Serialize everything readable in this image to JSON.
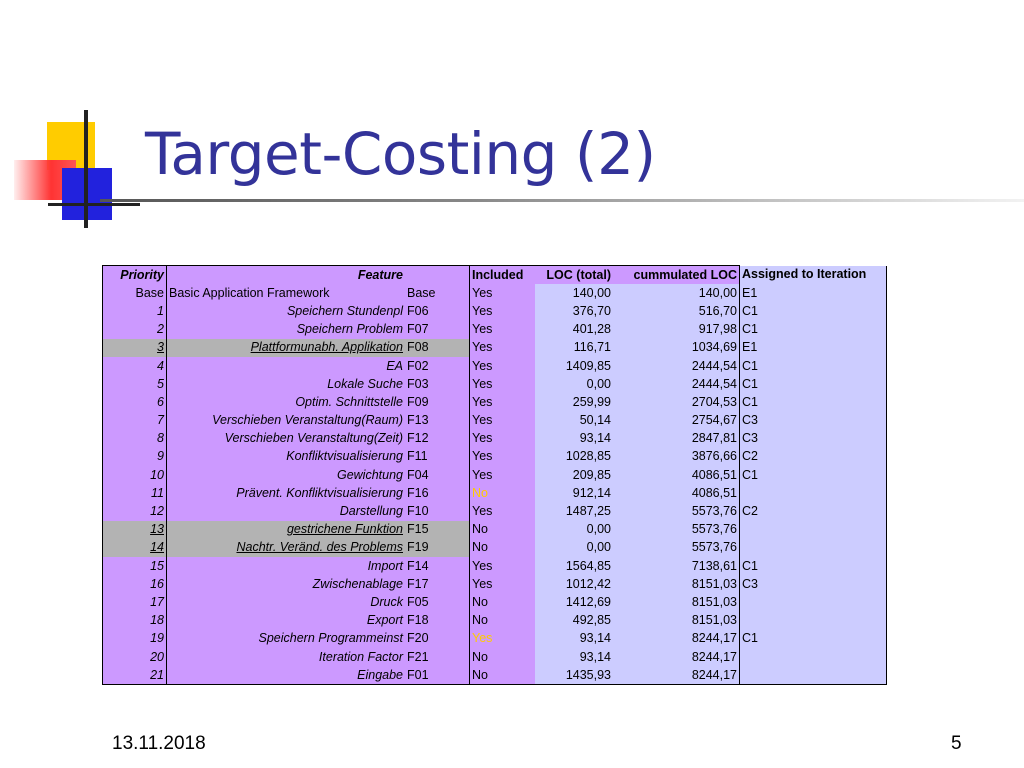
{
  "slide": {
    "title": "Target-Costing (2)",
    "footer_date": "13.11.2018",
    "page_number": "5"
  },
  "table": {
    "headers": [
      "Priority",
      "Feature",
      "",
      "Included",
      "LOC (total)",
      "cummulated LOC",
      "Assigned to Iteration"
    ],
    "rows": [
      {
        "priority": "Base",
        "feature": "Basic Application Framework",
        "id": "Base",
        "included": "Yes",
        "loc": "140,00",
        "cum": "140,00",
        "assigned": "E1"
      },
      {
        "priority": "1",
        "feature": "Speichern Stundenpl",
        "id": "F06",
        "included": "Yes",
        "loc": "376,70",
        "cum": "516,70",
        "assigned": "C1"
      },
      {
        "priority": "2",
        "feature": "Speichern Problem",
        "id": "F07",
        "included": "Yes",
        "loc": "401,28",
        "cum": "917,98",
        "assigned": "C1"
      },
      {
        "priority": "3",
        "feature": "Plattformunabh. Applikation",
        "id": "F08",
        "included": "Yes",
        "loc": "116,71",
        "cum": "1034,69",
        "assigned": "E1"
      },
      {
        "priority": "4",
        "feature": "EA",
        "id": "F02",
        "included": "Yes",
        "loc": "1409,85",
        "cum": "2444,54",
        "assigned": "C1"
      },
      {
        "priority": "5",
        "feature": "Lokale Suche",
        "id": "F03",
        "included": "Yes",
        "loc": "0,00",
        "cum": "2444,54",
        "assigned": "C1"
      },
      {
        "priority": "6",
        "feature": "Optim. Schnittstelle",
        "id": "F09",
        "included": "Yes",
        "loc": "259,99",
        "cum": "2704,53",
        "assigned": "C1"
      },
      {
        "priority": "7",
        "feature": "Verschieben Veranstaltung(Raum)",
        "id": "F13",
        "included": "Yes",
        "loc": "50,14",
        "cum": "2754,67",
        "assigned": "C3"
      },
      {
        "priority": "8",
        "feature": "Verschieben Veranstaltung(Zeit)",
        "id": "F12",
        "included": "Yes",
        "loc": "93,14",
        "cum": "2847,81",
        "assigned": "C3"
      },
      {
        "priority": "9",
        "feature": "Konfliktvisualisierung",
        "id": "F11",
        "included": "Yes",
        "loc": "1028,85",
        "cum": "3876,66",
        "assigned": "C2"
      },
      {
        "priority": "10",
        "feature": "Gewichtung",
        "id": "F04",
        "included": "Yes",
        "loc": "209,85",
        "cum": "4086,51",
        "assigned": "C1"
      },
      {
        "priority": "11",
        "feature": "Prävent. Konfliktvisualisierung",
        "id": "F16",
        "included": "No",
        "loc": "912,14",
        "cum": "4086,51",
        "assigned": ""
      },
      {
        "priority": "12",
        "feature": "Darstellung",
        "id": "F10",
        "included": "Yes",
        "loc": "1487,25",
        "cum": "5573,76",
        "assigned": "C2"
      },
      {
        "priority": "13",
        "feature": "gestrichene Funktion",
        "id": "F15",
        "included": "No",
        "loc": "0,00",
        "cum": "5573,76",
        "assigned": ""
      },
      {
        "priority": "14",
        "feature": "Nachtr. Veränd. des Problems",
        "id": "F19",
        "included": "No",
        "loc": "0,00",
        "cum": "5573,76",
        "assigned": ""
      },
      {
        "priority": "15",
        "feature": "Import",
        "id": "F14",
        "included": "Yes",
        "loc": "1564,85",
        "cum": "7138,61",
        "assigned": "C1"
      },
      {
        "priority": "16",
        "feature": "Zwischenablage",
        "id": "F17",
        "included": "Yes",
        "loc": "1012,42",
        "cum": "8151,03",
        "assigned": "C3"
      },
      {
        "priority": "17",
        "feature": "Druck",
        "id": "F05",
        "included": "No",
        "loc": "1412,69",
        "cum": "8151,03",
        "assigned": ""
      },
      {
        "priority": "18",
        "feature": "Export",
        "id": "F18",
        "included": "No",
        "loc": "492,85",
        "cum": "8151,03",
        "assigned": ""
      },
      {
        "priority": "19",
        "feature": "Speichern Programmeinst",
        "id": "F20",
        "included": "Yes",
        "loc": "93,14",
        "cum": "8244,17",
        "assigned": "C1"
      },
      {
        "priority": "20",
        "feature": "Iteration Factor",
        "id": "F21",
        "included": "No",
        "loc": "93,14",
        "cum": "8244,17",
        "assigned": ""
      },
      {
        "priority": "21",
        "feature": "Eingabe",
        "id": "F01",
        "included": "No",
        "loc": "1435,93",
        "cum": "8244,17",
        "assigned": ""
      }
    ]
  },
  "colors": {
    "title": "#333399",
    "feature_columns": "#cc99ff",
    "value_columns": "#ccccff",
    "highlighted_row": "#b3b3b3",
    "highlighted_included": "#ffcc00"
  }
}
